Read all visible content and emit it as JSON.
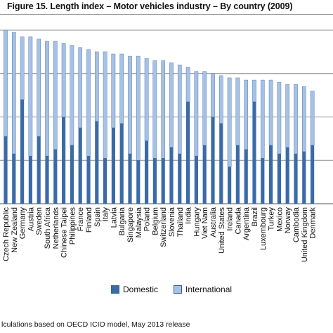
{
  "header": {
    "title": "Figure 15. Length index – Motor vehicles industry – By country (2009)"
  },
  "footer": {
    "source": "lculations based on OECD ICIO model, May 2013 release"
  },
  "legend": {
    "domestic": "Domestic",
    "international": "International"
  },
  "colors": {
    "domestic": "#3a6ba8",
    "international": "#a7c1e4",
    "gridline": "#8c8c8c"
  },
  "chart_data": {
    "type": "bar",
    "stacked": true,
    "title": "Figure 15. Length index – Motor vehicles industry – By country (2009)",
    "categories": [
      "Czech Republic",
      "New Zealand",
      "Germany",
      "Austria",
      "Sweden",
      "South Africa",
      "Netherlands",
      "Chinese Taipei",
      "Philippines",
      "France",
      "Finland",
      "Spain",
      "Italy",
      "Latvia",
      "Bulgaria",
      "Singapore",
      "Malaysia",
      "Poland",
      "Belgium",
      "Switzerland",
      "Slovenia",
      "Thailand",
      "India",
      "Hungary",
      "Viet Nam",
      "Australia",
      "United States",
      "Ireland",
      "Canada",
      "Argentina",
      "Brazil",
      "Luxembourg",
      "Turkey",
      "Mexico",
      "Norway",
      "Cambodia",
      "United Kingdom",
      "Denmark"
    ],
    "ylim": [
      0,
      4
    ],
    "grid": true,
    "legend_position": "bottom",
    "series": [
      {
        "name": "Domestic",
        "values": [
          1.55,
          1.15,
          2.4,
          1.1,
          1.55,
          1.1,
          1.25,
          2.0,
          1.35,
          1.75,
          1.1,
          1.9,
          1.05,
          1.75,
          1.85,
          1.15,
          1.0,
          1.45,
          1.05,
          1.05,
          1.3,
          1.15,
          2.35,
          1.1,
          1.35,
          2.0,
          1.85,
          0.85,
          1.35,
          1.25,
          2.35,
          1.05,
          1.35,
          1.15,
          1.3,
          1.15,
          1.2,
          1.35
        ]
      },
      {
        "name": "International",
        "values": [
          2.45,
          2.8,
          1.45,
          2.75,
          2.25,
          2.65,
          2.5,
          1.7,
          2.3,
          1.85,
          2.45,
          1.6,
          2.45,
          1.7,
          1.6,
          2.25,
          2.4,
          1.9,
          2.25,
          2.25,
          1.95,
          2.05,
          0.8,
          1.95,
          1.7,
          1.0,
          1.1,
          2.05,
          1.55,
          1.6,
          0.5,
          1.8,
          1.5,
          1.65,
          1.45,
          1.6,
          1.5,
          1.25
        ]
      }
    ]
  }
}
